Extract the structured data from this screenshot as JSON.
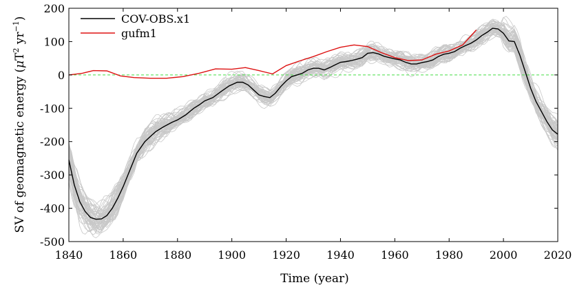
{
  "chart_data": {
    "type": "line",
    "title": "",
    "xlabel": "Time (year)",
    "ylabel": "SV of geomagnetic energy (μT² yr⁻¹)",
    "ylabel_parts": {
      "main": "SV of geomagnetic energy (",
      "mu": "μ",
      "unit_T": "T",
      "sup2": "2",
      "unit_yr": " yr",
      "supm1": "−1",
      "close": ")"
    },
    "xlim": [
      1840,
      2020
    ],
    "ylim": [
      -500,
      200
    ],
    "x_ticks": [
      "1840",
      "1860",
      "1880",
      "1900",
      "1920",
      "1940",
      "1960",
      "1980",
      "2000",
      "2020"
    ],
    "y_ticks": [
      "200",
      "100",
      "0",
      "-100",
      "-200",
      "-300",
      "-400",
      "-500"
    ],
    "legend": {
      "placement": "top-left",
      "entries": [
        "COV-OBS.x1",
        "gufm1"
      ]
    },
    "reference_line": {
      "y": 0,
      "color": "#44dd44",
      "style": "dashed"
    },
    "ensemble": {
      "name": "ensemble members",
      "color": "#c8c8c8",
      "count": 60
    },
    "series": [
      {
        "name": "COV-OBS.x1",
        "color": "#000000",
        "x": [
          1840,
          1842,
          1844,
          1846,
          1848,
          1850,
          1852,
          1854,
          1856,
          1858,
          1860,
          1862,
          1865,
          1868,
          1870,
          1872,
          1875,
          1878,
          1880,
          1883,
          1886,
          1888,
          1890,
          1893,
          1896,
          1899,
          1902,
          1904,
          1906,
          1908,
          1910,
          1912,
          1914,
          1916,
          1918,
          1920,
          1922,
          1924,
          1926,
          1928,
          1930,
          1932,
          1934,
          1936,
          1938,
          1940,
          1942,
          1944,
          1946,
          1948,
          1950,
          1952,
          1954,
          1956,
          1958,
          1960,
          1962,
          1964,
          1966,
          1968,
          1970,
          1972,
          1974,
          1976,
          1978,
          1980,
          1982,
          1984,
          1986,
          1988,
          1990,
          1992,
          1994,
          1996,
          1998,
          2000,
          2002,
          2004,
          2006,
          2008,
          2010,
          2012,
          2014,
          2016,
          2018,
          2020
        ],
        "values": [
          -255,
          -330,
          -380,
          -410,
          -428,
          -433,
          -432,
          -422,
          -400,
          -370,
          -335,
          -295,
          -235,
          -200,
          -185,
          -170,
          -155,
          -142,
          -135,
          -120,
          -100,
          -90,
          -78,
          -68,
          -50,
          -33,
          -22,
          -22,
          -30,
          -45,
          -60,
          -65,
          -68,
          -55,
          -35,
          -18,
          -5,
          0,
          5,
          15,
          20,
          20,
          15,
          22,
          30,
          38,
          40,
          43,
          47,
          52,
          65,
          67,
          63,
          56,
          52,
          48,
          45,
          38,
          33,
          33,
          37,
          40,
          45,
          55,
          62,
          65,
          70,
          80,
          88,
          95,
          105,
          118,
          128,
          140,
          138,
          125,
          102,
          100,
          60,
          10,
          -40,
          -80,
          -110,
          -140,
          -165,
          -178
        ]
      },
      {
        "name": "gufm1",
        "color": "#dd1111",
        "x": [
          1840,
          1845,
          1849,
          1854,
          1859,
          1864,
          1870,
          1876,
          1882,
          1888,
          1894,
          1900,
          1905,
          1910,
          1915,
          1920,
          1925,
          1930,
          1935,
          1940,
          1945,
          1950,
          1955,
          1960,
          1965,
          1970,
          1975,
          1980,
          1985,
          1990
        ],
        "values": [
          0,
          5,
          13,
          12,
          -3,
          -8,
          -10,
          -10,
          -5,
          5,
          18,
          17,
          22,
          13,
          3,
          28,
          42,
          55,
          70,
          83,
          90,
          85,
          67,
          52,
          43,
          45,
          62,
          72,
          90,
          135
        ]
      }
    ]
  }
}
